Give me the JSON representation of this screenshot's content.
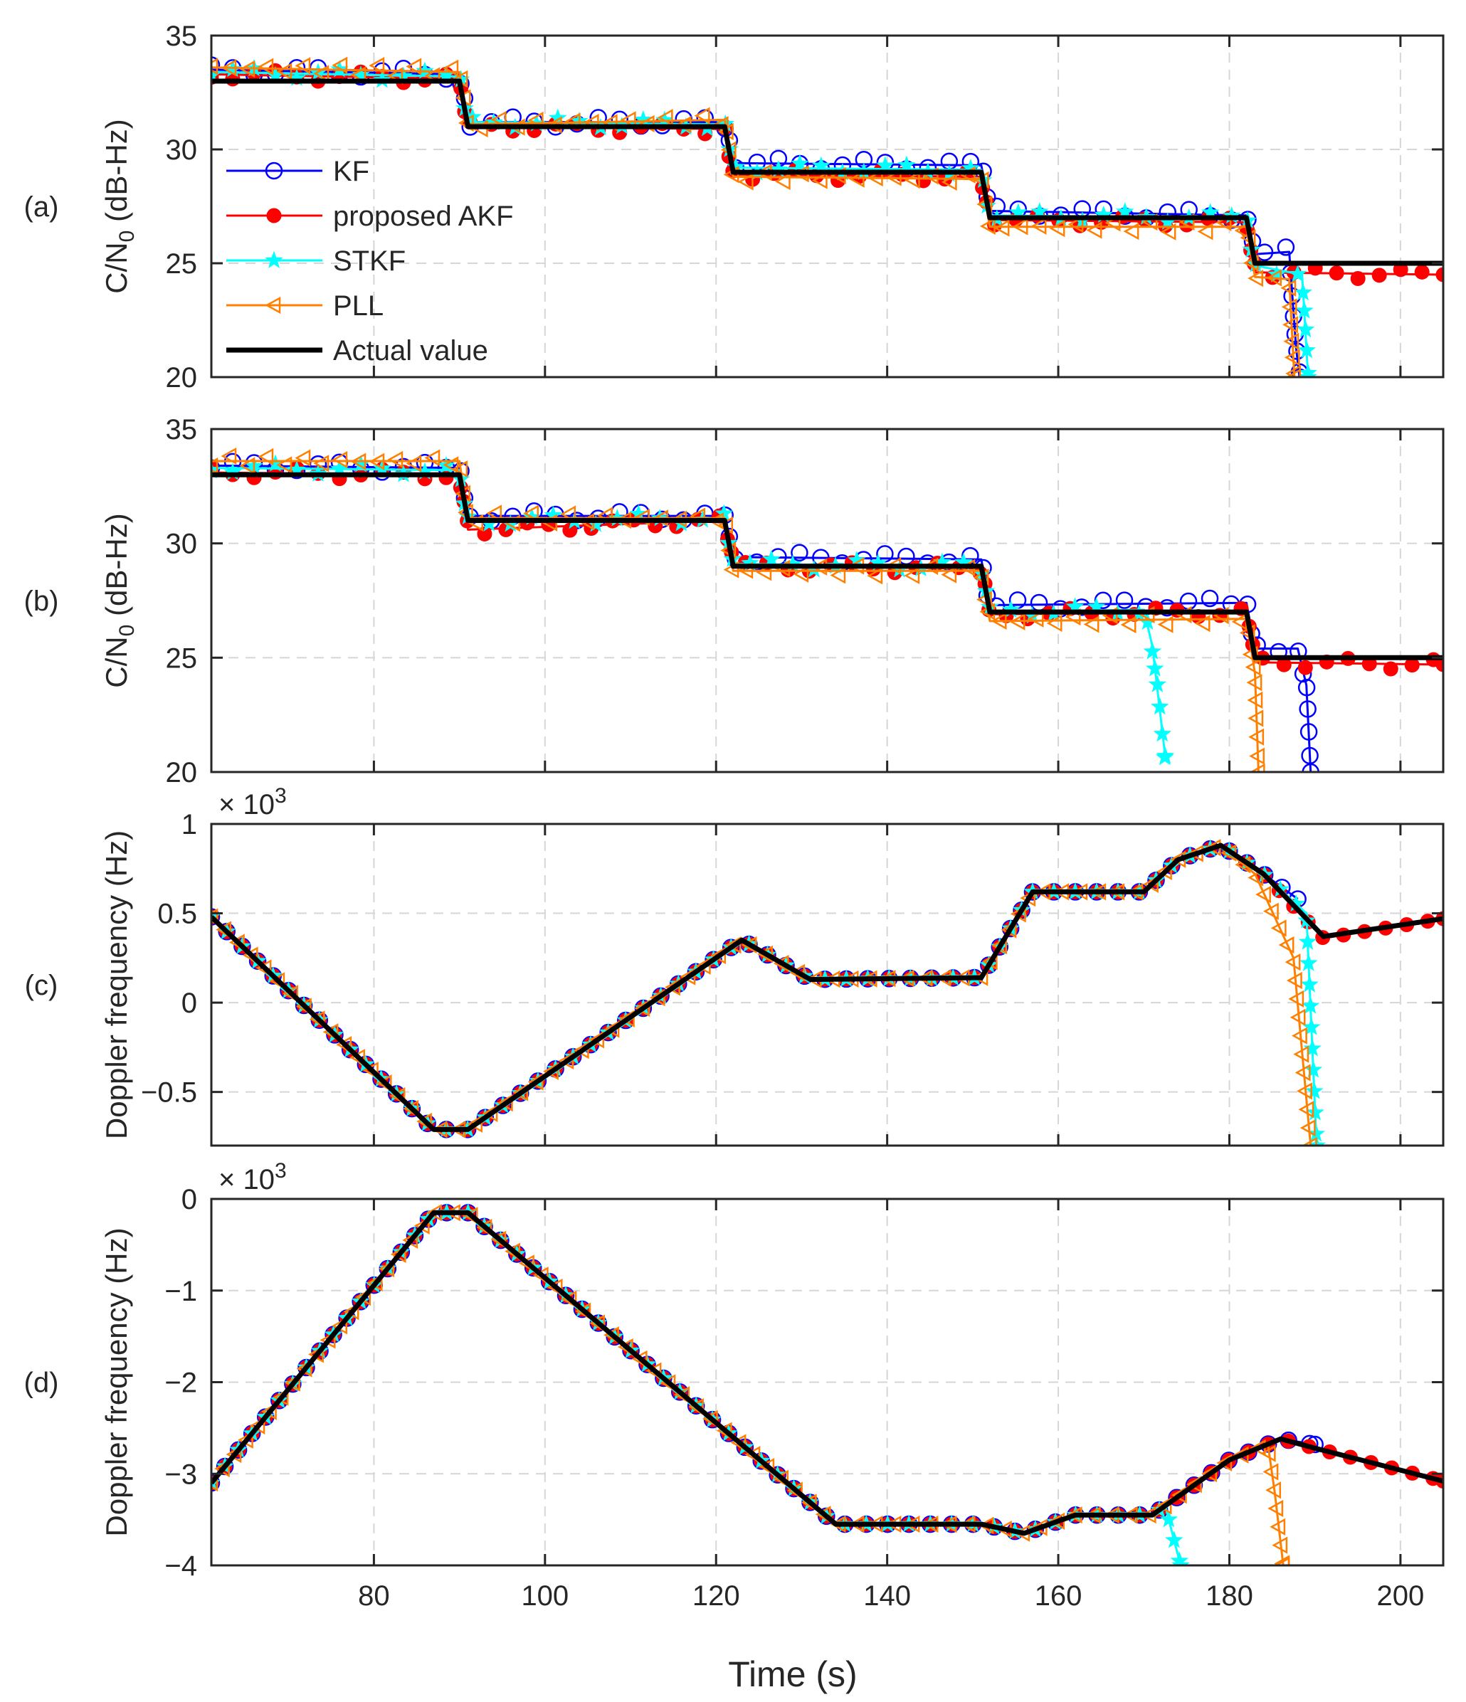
{
  "chart_data": [
    {
      "type": "line",
      "panel_label": "(a)",
      "ylabel": "C/N0 (dB-Hz)",
      "ylabel_main": "C/N",
      "ylabel_sub": "0",
      "ylabel_unit": " (dB-Hz)",
      "xlim": [
        61,
        205
      ],
      "ylim": [
        20,
        35
      ],
      "xticks": [
        80,
        100,
        120,
        140,
        160,
        180,
        200
      ],
      "xtick_labels": [],
      "yticks": [
        20,
        25,
        30,
        35
      ],
      "ytick_labels": [
        "20",
        "25",
        "30",
        "35"
      ],
      "grid": true,
      "legend": {
        "position": "left-middle",
        "entries": [
          "KF",
          "proposed AKF",
          "STKF",
          "PLL",
          "Actual value"
        ]
      },
      "actual": {
        "name": "Actual value",
        "x": [
          61,
          90,
          91,
          121,
          122,
          151,
          152,
          182,
          183,
          205
        ],
        "y": [
          33,
          33,
          31,
          31,
          29,
          29,
          27,
          27,
          25,
          25
        ]
      },
      "series": [
        {
          "name": "KF",
          "x": [
            61,
            90,
            91,
            121,
            122,
            151,
            152,
            182,
            183,
            187,
            187.8,
            188.2
          ],
          "y": [
            33.5,
            33.3,
            31.2,
            31.2,
            29.4,
            29.3,
            27.3,
            27.1,
            25.4,
            25.5,
            21.3,
            20
          ]
        },
        {
          "name": "proposed AKF",
          "x": [
            61,
            90,
            91,
            121,
            122,
            151,
            152,
            182,
            183,
            205
          ],
          "y": [
            33.3,
            33.1,
            31.0,
            30.9,
            28.9,
            28.8,
            26.9,
            26.8,
            24.6,
            24.5
          ]
        },
        {
          "name": "STKF",
          "x": [
            61,
            90,
            91,
            121,
            122,
            151,
            152,
            182,
            183,
            188.5,
            189.2
          ],
          "y": [
            33.4,
            33.2,
            31.2,
            31.1,
            29.2,
            29.1,
            27.1,
            27.0,
            24.9,
            24.5,
            20
          ]
        },
        {
          "name": "PLL",
          "x": [
            61,
            90,
            91,
            121,
            122,
            151,
            152,
            182,
            183,
            187,
            187.6
          ],
          "y": [
            33.6,
            33.4,
            31.1,
            31.3,
            28.8,
            28.7,
            26.6,
            26.6,
            24.4,
            24.3,
            20
          ]
        }
      ]
    },
    {
      "type": "line",
      "panel_label": "(b)",
      "ylabel": "C/N0 (dB-Hz)",
      "ylabel_main": "C/N",
      "ylabel_sub": "0",
      "ylabel_unit": " (dB-Hz)",
      "xlim": [
        61,
        205
      ],
      "ylim": [
        20,
        35
      ],
      "xticks": [
        80,
        100,
        120,
        140,
        160,
        180,
        200
      ],
      "xtick_labels": [],
      "yticks": [
        20,
        25,
        30,
        35
      ],
      "ytick_labels": [
        "20",
        "25",
        "30",
        "35"
      ],
      "grid": true,
      "actual": {
        "name": "Actual value",
        "x": [
          61,
          90,
          91,
          121,
          122,
          151,
          152,
          182,
          183,
          205
        ],
        "y": [
          33,
          33,
          31,
          31,
          29,
          29,
          27,
          27,
          25,
          25
        ]
      },
      "series": [
        {
          "name": "KF",
          "x": [
            61,
            90,
            91,
            121,
            122,
            151,
            152,
            182,
            183,
            188,
            189,
            189.5
          ],
          "y": [
            33.4,
            33.3,
            31.2,
            31.2,
            29.4,
            29.3,
            27.3,
            27.4,
            25.4,
            25.4,
            23.8,
            20
          ]
        },
        {
          "name": "proposed AKF",
          "x": [
            61,
            90,
            91,
            121,
            122,
            151,
            152,
            182,
            183,
            205
          ],
          "y": [
            33.1,
            33.0,
            30.6,
            31.0,
            29.0,
            28.9,
            26.9,
            27.0,
            24.8,
            24.7
          ]
        },
        {
          "name": "STKF",
          "x": [
            61,
            90,
            91,
            121,
            122,
            151,
            152,
            170,
            171,
            172.5
          ],
          "y": [
            33.3,
            33.2,
            31.0,
            31.1,
            29.1,
            29.0,
            27.0,
            27.1,
            25.5,
            20.7
          ]
        },
        {
          "name": "PLL",
          "x": [
            61,
            90,
            91,
            121,
            122,
            151,
            152,
            182,
            183,
            183.4
          ],
          "y": [
            33.6,
            33.6,
            31.1,
            31.1,
            28.8,
            28.8,
            26.6,
            26.7,
            24.3,
            20
          ]
        }
      ]
    },
    {
      "type": "line",
      "panel_label": "(c)",
      "ylabel": "Doppler frequency (Hz)",
      "exponent_label": "× 10",
      "exponent_power": "3",
      "xlim": [
        61,
        205
      ],
      "ylim": [
        -0.8,
        1
      ],
      "xticks": [
        80,
        100,
        120,
        140,
        160,
        180,
        200
      ],
      "xtick_labels": [],
      "yticks": [
        -0.5,
        0,
        0.5,
        1
      ],
      "ytick_labels": [
        "−0.5",
        "0",
        "0.5",
        "1"
      ],
      "grid": true,
      "actual": {
        "name": "Actual value",
        "x": [
          61,
          87,
          91,
          123,
          131,
          151,
          157,
          170,
          174,
          179,
          184,
          191,
          205
        ],
        "y": [
          0.48,
          -0.71,
          -0.71,
          0.35,
          0.13,
          0.14,
          0.62,
          0.62,
          0.8,
          0.88,
          0.72,
          0.37,
          0.47
        ]
      },
      "series": [
        {
          "name": "KF",
          "x": [
            61,
            87,
            91,
            123,
            131,
            151,
            157,
            170,
            174,
            179,
            184,
            188
          ],
          "y": [
            0.48,
            -0.71,
            -0.71,
            0.35,
            0.13,
            0.14,
            0.62,
            0.62,
            0.8,
            0.88,
            0.72,
            0.58
          ]
        },
        {
          "name": "proposed AKF",
          "x": [
            61,
            87,
            91,
            123,
            131,
            151,
            157,
            170,
            174,
            179,
            184,
            191,
            205
          ],
          "y": [
            0.48,
            -0.71,
            -0.71,
            0.35,
            0.13,
            0.14,
            0.62,
            0.62,
            0.8,
            0.88,
            0.72,
            0.36,
            0.47
          ]
        },
        {
          "name": "STKF",
          "x": [
            61,
            87,
            91,
            123,
            131,
            151,
            157,
            170,
            174,
            179,
            184,
            189,
            190.2
          ],
          "y": [
            0.48,
            -0.71,
            -0.71,
            0.35,
            0.13,
            0.14,
            0.62,
            0.62,
            0.8,
            0.88,
            0.72,
            0.5,
            -0.8
          ]
        },
        {
          "name": "PLL",
          "x": [
            61,
            87,
            91,
            123,
            131,
            151,
            157,
            170,
            174,
            179,
            183,
            187.5,
            189.5
          ],
          "y": [
            0.48,
            -0.71,
            -0.71,
            0.35,
            0.13,
            0.14,
            0.62,
            0.62,
            0.8,
            0.88,
            0.72,
            0.25,
            -0.8
          ]
        }
      ]
    },
    {
      "type": "line",
      "panel_label": "(d)",
      "ylabel": "Doppler frequency (Hz)",
      "exponent_label": "× 10",
      "exponent_power": "3",
      "xlabel": "Time (s)",
      "xlim": [
        61,
        205
      ],
      "ylim": [
        -4,
        0
      ],
      "xticks": [
        80,
        100,
        120,
        140,
        160,
        180,
        200
      ],
      "xtick_labels": [
        "80",
        "100",
        "120",
        "140",
        "160",
        "180",
        "200"
      ],
      "yticks": [
        -4,
        -3,
        -2,
        -1,
        0
      ],
      "ytick_labels": [
        "−4",
        "−3",
        "−2",
        "−1",
        "0"
      ],
      "grid": true,
      "actual": {
        "name": "Actual value",
        "x": [
          61,
          87,
          91,
          134,
          151,
          156,
          162,
          171,
          180,
          186,
          190,
          205
        ],
        "y": [
          -3.1,
          -0.15,
          -0.15,
          -3.55,
          -3.55,
          -3.65,
          -3.45,
          -3.45,
          -2.85,
          -2.62,
          -2.72,
          -3.08
        ]
      },
      "series": [
        {
          "name": "KF",
          "x": [
            61,
            87,
            91,
            134,
            151,
            156,
            162,
            171,
            180,
            186,
            190
          ],
          "y": [
            -3.1,
            -0.15,
            -0.15,
            -3.55,
            -3.55,
            -3.65,
            -3.45,
            -3.45,
            -2.85,
            -2.62,
            -2.68
          ]
        },
        {
          "name": "proposed AKF",
          "x": [
            61,
            87,
            91,
            134,
            151,
            156,
            162,
            171,
            180,
            186,
            190,
            205
          ],
          "y": [
            -3.1,
            -0.15,
            -0.15,
            -3.55,
            -3.55,
            -3.65,
            -3.45,
            -3.45,
            -2.85,
            -2.62,
            -2.72,
            -3.08
          ]
        },
        {
          "name": "STKF",
          "x": [
            61,
            87,
            91,
            134,
            151,
            156,
            162,
            171,
            172.5,
            174.3
          ],
          "y": [
            -3.1,
            -0.15,
            -0.15,
            -3.55,
            -3.55,
            -3.65,
            -3.45,
            -3.45,
            -3.35,
            -4
          ]
        },
        {
          "name": "PLL",
          "x": [
            61,
            87,
            91,
            134,
            151,
            156,
            162,
            171,
            180,
            184.5,
            185.3,
            186.3
          ],
          "y": [
            -3.1,
            -0.15,
            -0.15,
            -3.55,
            -3.55,
            -3.65,
            -3.45,
            -3.45,
            -2.85,
            -2.68,
            -3.2,
            -4
          ]
        }
      ]
    }
  ],
  "colors": {
    "KF": "#0000ff",
    "proposed AKF": "#ff0000",
    "STKF": "#00ffff",
    "PLL": "#ff8000",
    "Actual value": "#000000",
    "grid": "#d6d6d6",
    "axes": "#262626"
  }
}
